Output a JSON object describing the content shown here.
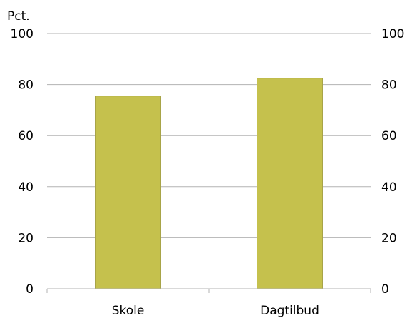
{
  "chart_data": {
    "type": "bar",
    "ylabel": "Pct.",
    "categories": [
      "Skole",
      "Dagtilbud"
    ],
    "values": [
      75.5,
      82.5
    ],
    "ylim": [
      0,
      100
    ],
    "yticks": [
      0,
      20,
      40,
      60,
      80,
      100
    ],
    "yticks_right": [
      0,
      20,
      40,
      60,
      80,
      100
    ],
    "grid": true,
    "colors": {
      "bar": "#c5c14d",
      "bar_border": "#a8a448",
      "grid": "#b3b3b3"
    }
  }
}
